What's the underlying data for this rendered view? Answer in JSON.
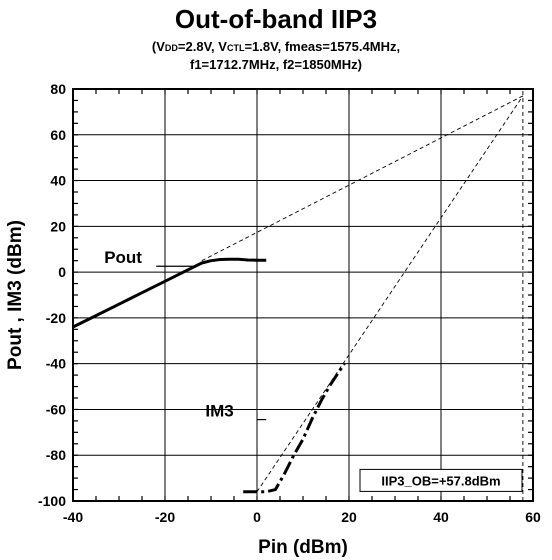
{
  "chart_data": {
    "type": "line",
    "title": "Out-of-band IIP3",
    "subtitle": {
      "line1": {
        "p1": "(V",
        "s1": "DD",
        "p2": "=2.8V, V",
        "s2": "CTL",
        "p3": "=1.8V, fmeas=1575.4MHz,"
      },
      "line2": "f1=1712.7MHz, f2=1850MHz)"
    },
    "xlabel": "Pin (dBm)",
    "ylabel": "Pout , IM3 (dBm)",
    "xlim": [
      -40,
      60
    ],
    "ylim": [
      -100,
      80
    ],
    "x_ticks": [
      -40,
      -20,
      0,
      20,
      40,
      60
    ],
    "x_tick_labels": [
      "-40",
      "-20",
      "0",
      "20",
      "40",
      "60"
    ],
    "y_ticks": [
      -100,
      -80,
      -60,
      -40,
      -20,
      0,
      20,
      40,
      60,
      80
    ],
    "y_tick_labels": [
      "-100",
      "-80",
      "-60",
      "-40",
      "-20",
      "0",
      "20",
      "40",
      "60",
      "80"
    ],
    "grid": true,
    "series": [
      {
        "name": "Pout",
        "style": "solid",
        "x": [
          -40,
          -35,
          -30,
          -25,
          -20,
          -15,
          -12,
          -10,
          -8,
          -6,
          -4,
          -2,
          0,
          2
        ],
        "y": [
          -24,
          -19,
          -14,
          -9,
          -4,
          1,
          4,
          5,
          5.5,
          5.6,
          5.6,
          5.3,
          5.2,
          5.2
        ]
      },
      {
        "name": "IM3",
        "style": "dash-dot",
        "x": [
          -3,
          0,
          2,
          4,
          6,
          8,
          10,
          12,
          14,
          16,
          18,
          19
        ],
        "y": [
          -96,
          -96,
          -96,
          -95,
          -88,
          -80,
          -73,
          -64,
          -56,
          -49,
          -43,
          -40
        ]
      },
      {
        "style": "dashed-thin",
        "x": [
          -12,
          57.8
        ],
        "y": [
          5,
          77
        ]
      },
      {
        "style": "dashed-thin",
        "x": [
          0,
          57.8
        ],
        "y": [
          -96,
          77
        ]
      },
      {
        "style": "dashed-thin",
        "x": [
          57.8,
          57.8
        ],
        "y": [
          -100,
          80
        ]
      }
    ],
    "annotations": [
      {
        "text": "Pout",
        "x": -28,
        "y": 3,
        "leader_to": [
          -13,
          3
        ]
      },
      {
        "text": "IM3",
        "x": -6,
        "y": -64,
        "leader_to": [
          2,
          -64
        ]
      },
      {
        "text": "IIP3_OB=+57.8dBm",
        "x": 40,
        "y": -91,
        "boxed": true
      }
    ]
  }
}
